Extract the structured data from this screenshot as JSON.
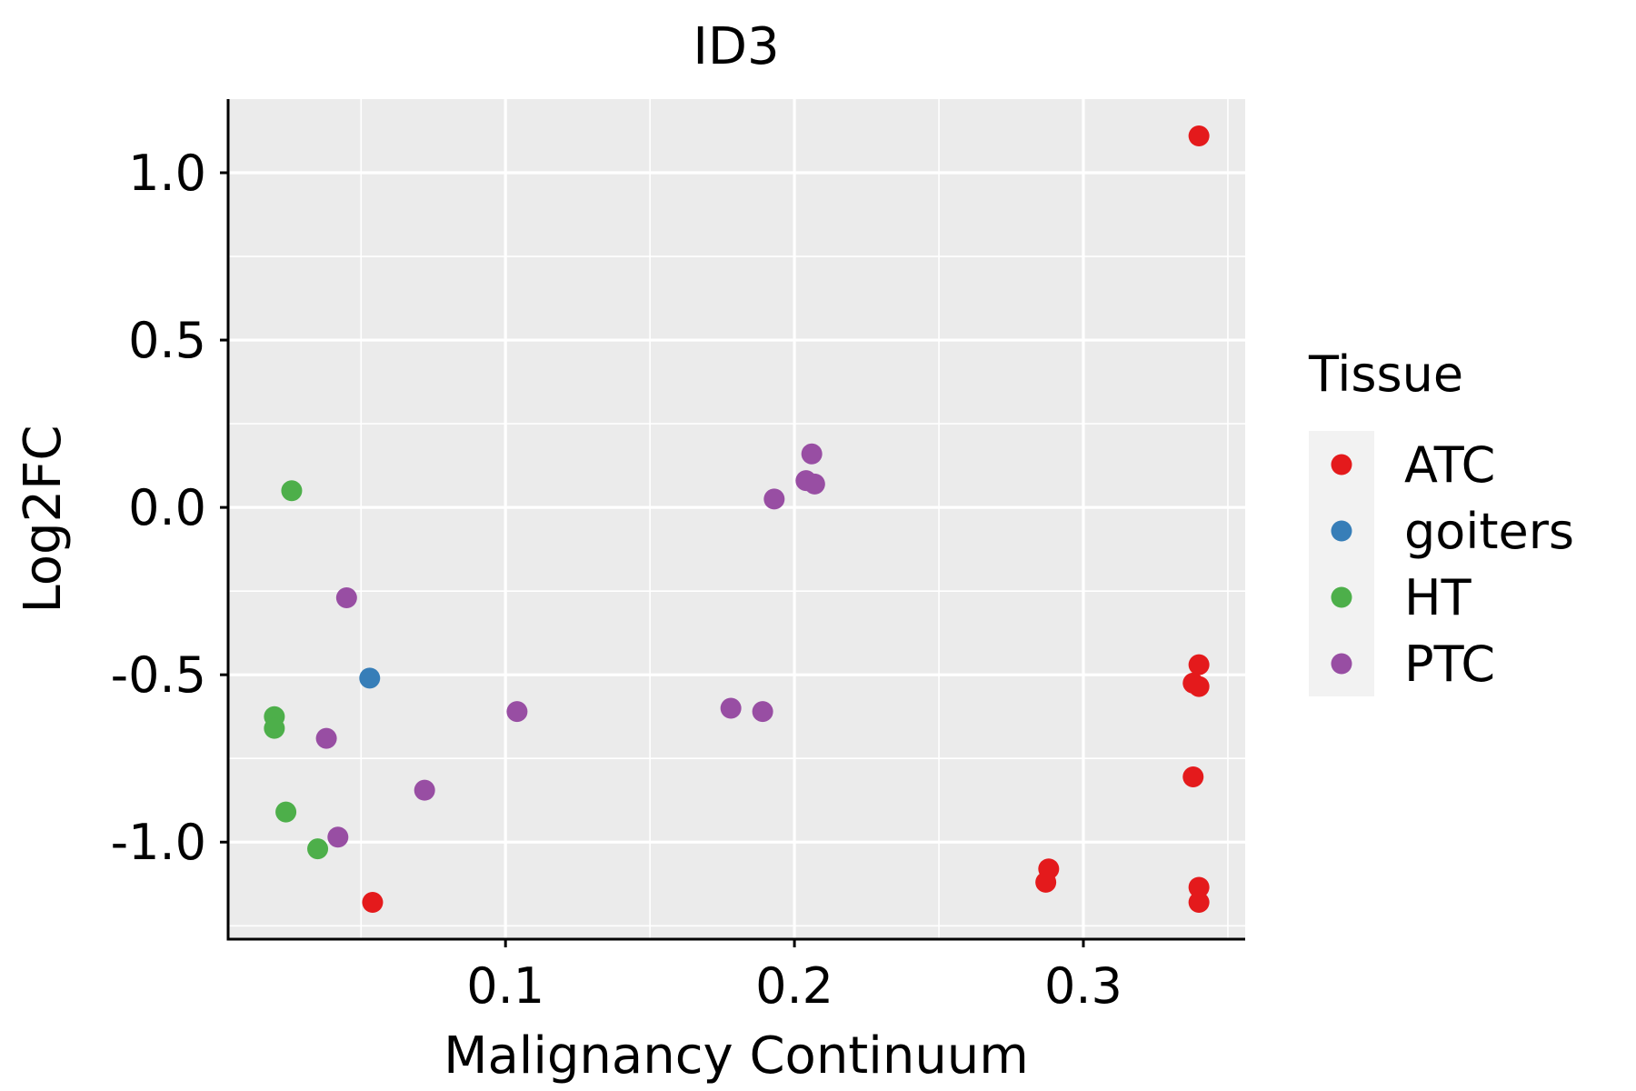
{
  "chart_data": {
    "type": "scatter",
    "title": "ID3",
    "xlabel": "Malignancy Continuum",
    "ylabel": "Log2FC",
    "xlim": [
      0.004,
      0.356
    ],
    "ylim": [
      -1.29,
      1.22
    ],
    "x_ticks": [
      0.1,
      0.2,
      0.3
    ],
    "x_tick_labels": [
      "0.1",
      "0.2",
      "0.3"
    ],
    "y_ticks": [
      1.0,
      0.5,
      0.0,
      -0.5,
      -1.0
    ],
    "y_tick_labels": [
      "1.0",
      "0.5",
      "0.0",
      "-0.5",
      "-1.0"
    ],
    "grid": true,
    "legend": {
      "title": "Tissue",
      "position": "right"
    },
    "series": [
      {
        "name": "ATC",
        "color": "#E41A1C",
        "points": [
          {
            "x": 0.34,
            "y": 1.11
          },
          {
            "x": 0.34,
            "y": -0.47
          },
          {
            "x": 0.338,
            "y": -0.525
          },
          {
            "x": 0.34,
            "y": -0.535
          },
          {
            "x": 0.338,
            "y": -0.805
          },
          {
            "x": 0.288,
            "y": -1.08
          },
          {
            "x": 0.287,
            "y": -1.12
          },
          {
            "x": 0.34,
            "y": -1.135
          },
          {
            "x": 0.34,
            "y": -1.18
          },
          {
            "x": 0.054,
            "y": -1.18
          }
        ]
      },
      {
        "name": "goiters",
        "color": "#377EB8",
        "points": [
          {
            "x": 0.053,
            "y": -0.51
          }
        ]
      },
      {
        "name": "HT",
        "color": "#4DAF4A",
        "points": [
          {
            "x": 0.026,
            "y": 0.05
          },
          {
            "x": 0.02,
            "y": -0.625
          },
          {
            "x": 0.02,
            "y": -0.66
          },
          {
            "x": 0.024,
            "y": -0.91
          },
          {
            "x": 0.035,
            "y": -1.02
          }
        ]
      },
      {
        "name": "PTC",
        "color": "#984EA3",
        "points": [
          {
            "x": 0.206,
            "y": 0.16
          },
          {
            "x": 0.204,
            "y": 0.08
          },
          {
            "x": 0.207,
            "y": 0.07
          },
          {
            "x": 0.193,
            "y": 0.025
          },
          {
            "x": 0.045,
            "y": -0.27
          },
          {
            "x": 0.038,
            "y": -0.69
          },
          {
            "x": 0.104,
            "y": -0.61
          },
          {
            "x": 0.178,
            "y": -0.6
          },
          {
            "x": 0.189,
            "y": -0.61
          },
          {
            "x": 0.072,
            "y": -0.845
          },
          {
            "x": 0.042,
            "y": -0.985
          }
        ]
      }
    ]
  }
}
